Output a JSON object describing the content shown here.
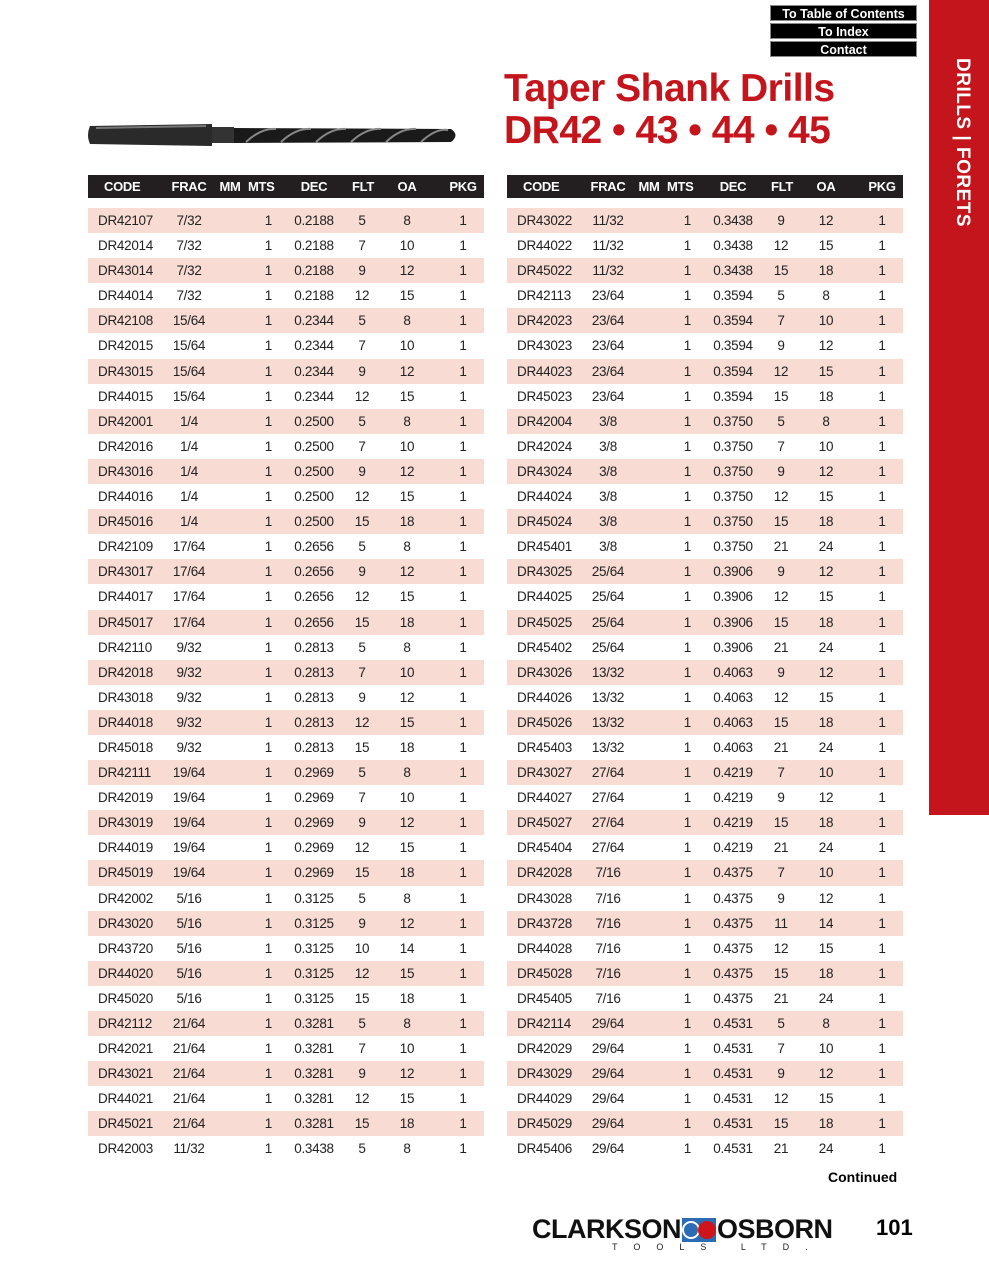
{
  "nav": {
    "toc": "To Table of Contents",
    "index": "To Index",
    "contact": "Contact"
  },
  "sidebar_label": "DRILLS  |  FORETS",
  "title_line1": "Taper Shank Drills",
  "title_line2": "DR42 • 43 • 44 • 45",
  "columns": [
    "CODE",
    "FRAC",
    "MM",
    "MTS",
    "DEC",
    "FLT",
    "OA",
    "PKG"
  ],
  "colors": {
    "accent": "#c4141c",
    "row_shade": "#f8dbd2",
    "header_bg": "#231f20"
  },
  "left_rows": [
    [
      "DR42107",
      "7/32",
      "",
      "1",
      "0.2188",
      "5",
      "8",
      "1"
    ],
    [
      "DR42014",
      "7/32",
      "",
      "1",
      "0.2188",
      "7",
      "10",
      "1"
    ],
    [
      "DR43014",
      "7/32",
      "",
      "1",
      "0.2188",
      "9",
      "12",
      "1"
    ],
    [
      "DR44014",
      "7/32",
      "",
      "1",
      "0.2188",
      "12",
      "15",
      "1"
    ],
    [
      "DR42108",
      "15/64",
      "",
      "1",
      "0.2344",
      "5",
      "8",
      "1"
    ],
    [
      "DR42015",
      "15/64",
      "",
      "1",
      "0.2344",
      "7",
      "10",
      "1"
    ],
    [
      "DR43015",
      "15/64",
      "",
      "1",
      "0.2344",
      "9",
      "12",
      "1"
    ],
    [
      "DR44015",
      "15/64",
      "",
      "1",
      "0.2344",
      "12",
      "15",
      "1"
    ],
    [
      "DR42001",
      "1/4",
      "",
      "1",
      "0.2500",
      "5",
      "8",
      "1"
    ],
    [
      "DR42016",
      "1/4",
      "",
      "1",
      "0.2500",
      "7",
      "10",
      "1"
    ],
    [
      "DR43016",
      "1/4",
      "",
      "1",
      "0.2500",
      "9",
      "12",
      "1"
    ],
    [
      "DR44016",
      "1/4",
      "",
      "1",
      "0.2500",
      "12",
      "15",
      "1"
    ],
    [
      "DR45016",
      "1/4",
      "",
      "1",
      "0.2500",
      "15",
      "18",
      "1"
    ],
    [
      "DR42109",
      "17/64",
      "",
      "1",
      "0.2656",
      "5",
      "8",
      "1"
    ],
    [
      "DR43017",
      "17/64",
      "",
      "1",
      "0.2656",
      "9",
      "12",
      "1"
    ],
    [
      "DR44017",
      "17/64",
      "",
      "1",
      "0.2656",
      "12",
      "15",
      "1"
    ],
    [
      "DR45017",
      "17/64",
      "",
      "1",
      "0.2656",
      "15",
      "18",
      "1"
    ],
    [
      "DR42110",
      "9/32",
      "",
      "1",
      "0.2813",
      "5",
      "8",
      "1"
    ],
    [
      "DR42018",
      "9/32",
      "",
      "1",
      "0.2813",
      "7",
      "10",
      "1"
    ],
    [
      "DR43018",
      "9/32",
      "",
      "1",
      "0.2813",
      "9",
      "12",
      "1"
    ],
    [
      "DR44018",
      "9/32",
      "",
      "1",
      "0.2813",
      "12",
      "15",
      "1"
    ],
    [
      "DR45018",
      "9/32",
      "",
      "1",
      "0.2813",
      "15",
      "18",
      "1"
    ],
    [
      "DR42111",
      "19/64",
      "",
      "1",
      "0.2969",
      "5",
      "8",
      "1"
    ],
    [
      "DR42019",
      "19/64",
      "",
      "1",
      "0.2969",
      "7",
      "10",
      "1"
    ],
    [
      "DR43019",
      "19/64",
      "",
      "1",
      "0.2969",
      "9",
      "12",
      "1"
    ],
    [
      "DR44019",
      "19/64",
      "",
      "1",
      "0.2969",
      "12",
      "15",
      "1"
    ],
    [
      "DR45019",
      "19/64",
      "",
      "1",
      "0.2969",
      "15",
      "18",
      "1"
    ],
    [
      "DR42002",
      "5/16",
      "",
      "1",
      "0.3125",
      "5",
      "8",
      "1"
    ],
    [
      "DR43020",
      "5/16",
      "",
      "1",
      "0.3125",
      "9",
      "12",
      "1"
    ],
    [
      "DR43720",
      "5/16",
      "",
      "1",
      "0.3125",
      "10",
      "14",
      "1"
    ],
    [
      "DR44020",
      "5/16",
      "",
      "1",
      "0.3125",
      "12",
      "15",
      "1"
    ],
    [
      "DR45020",
      "5/16",
      "",
      "1",
      "0.3125",
      "15",
      "18",
      "1"
    ],
    [
      "DR42112",
      "21/64",
      "",
      "1",
      "0.3281",
      "5",
      "8",
      "1"
    ],
    [
      "DR42021",
      "21/64",
      "",
      "1",
      "0.3281",
      "7",
      "10",
      "1"
    ],
    [
      "DR43021",
      "21/64",
      "",
      "1",
      "0.3281",
      "9",
      "12",
      "1"
    ],
    [
      "DR44021",
      "21/64",
      "",
      "1",
      "0.3281",
      "12",
      "15",
      "1"
    ],
    [
      "DR45021",
      "21/64",
      "",
      "1",
      "0.3281",
      "15",
      "18",
      "1"
    ],
    [
      "DR42003",
      "11/32",
      "",
      "1",
      "0.3438",
      "5",
      "8",
      "1"
    ]
  ],
  "right_rows": [
    [
      "DR43022",
      "11/32",
      "",
      "1",
      "0.3438",
      "9",
      "12",
      "1"
    ],
    [
      "DR44022",
      "11/32",
      "",
      "1",
      "0.3438",
      "12",
      "15",
      "1"
    ],
    [
      "DR45022",
      "11/32",
      "",
      "1",
      "0.3438",
      "15",
      "18",
      "1"
    ],
    [
      "DR42113",
      "23/64",
      "",
      "1",
      "0.3594",
      "5",
      "8",
      "1"
    ],
    [
      "DR42023",
      "23/64",
      "",
      "1",
      "0.3594",
      "7",
      "10",
      "1"
    ],
    [
      "DR43023",
      "23/64",
      "",
      "1",
      "0.3594",
      "9",
      "12",
      "1"
    ],
    [
      "DR44023",
      "23/64",
      "",
      "1",
      "0.3594",
      "12",
      "15",
      "1"
    ],
    [
      "DR45023",
      "23/64",
      "",
      "1",
      "0.3594",
      "15",
      "18",
      "1"
    ],
    [
      "DR42004",
      "3/8",
      "",
      "1",
      "0.3750",
      "5",
      "8",
      "1"
    ],
    [
      "DR42024",
      "3/8",
      "",
      "1",
      "0.3750",
      "7",
      "10",
      "1"
    ],
    [
      "DR43024",
      "3/8",
      "",
      "1",
      "0.3750",
      "9",
      "12",
      "1"
    ],
    [
      "DR44024",
      "3/8",
      "",
      "1",
      "0.3750",
      "12",
      "15",
      "1"
    ],
    [
      "DR45024",
      "3/8",
      "",
      "1",
      "0.3750",
      "15",
      "18",
      "1"
    ],
    [
      "DR45401",
      "3/8",
      "",
      "1",
      "0.3750",
      "21",
      "24",
      "1"
    ],
    [
      "DR43025",
      "25/64",
      "",
      "1",
      "0.3906",
      "9",
      "12",
      "1"
    ],
    [
      "DR44025",
      "25/64",
      "",
      "1",
      "0.3906",
      "12",
      "15",
      "1"
    ],
    [
      "DR45025",
      "25/64",
      "",
      "1",
      "0.3906",
      "15",
      "18",
      "1"
    ],
    [
      "DR45402",
      "25/64",
      "",
      "1",
      "0.3906",
      "21",
      "24",
      "1"
    ],
    [
      "DR43026",
      "13/32",
      "",
      "1",
      "0.4063",
      "9",
      "12",
      "1"
    ],
    [
      "DR44026",
      "13/32",
      "",
      "1",
      "0.4063",
      "12",
      "15",
      "1"
    ],
    [
      "DR45026",
      "13/32",
      "",
      "1",
      "0.4063",
      "15",
      "18",
      "1"
    ],
    [
      "DR45403",
      "13/32",
      "",
      "1",
      "0.4063",
      "21",
      "24",
      "1"
    ],
    [
      "DR43027",
      "27/64",
      "",
      "1",
      "0.4219",
      "7",
      "10",
      "1"
    ],
    [
      "DR44027",
      "27/64",
      "",
      "1",
      "0.4219",
      "9",
      "12",
      "1"
    ],
    [
      "DR45027",
      "27/64",
      "",
      "1",
      "0.4219",
      "15",
      "18",
      "1"
    ],
    [
      "DR45404",
      "27/64",
      "",
      "1",
      "0.4219",
      "21",
      "24",
      "1"
    ],
    [
      "DR42028",
      "7/16",
      "",
      "1",
      "0.4375",
      "7",
      "10",
      "1"
    ],
    [
      "DR43028",
      "7/16",
      "",
      "1",
      "0.4375",
      "9",
      "12",
      "1"
    ],
    [
      "DR43728",
      "7/16",
      "",
      "1",
      "0.4375",
      "11",
      "14",
      "1"
    ],
    [
      "DR44028",
      "7/16",
      "",
      "1",
      "0.4375",
      "12",
      "15",
      "1"
    ],
    [
      "DR45028",
      "7/16",
      "",
      "1",
      "0.4375",
      "15",
      "18",
      "1"
    ],
    [
      "DR45405",
      "7/16",
      "",
      "1",
      "0.4375",
      "21",
      "24",
      "1"
    ],
    [
      "DR42114",
      "29/64",
      "",
      "1",
      "0.4531",
      "5",
      "8",
      "1"
    ],
    [
      "DR42029",
      "29/64",
      "",
      "1",
      "0.4531",
      "7",
      "10",
      "1"
    ],
    [
      "DR43029",
      "29/64",
      "",
      "1",
      "0.4531",
      "9",
      "12",
      "1"
    ],
    [
      "DR44029",
      "29/64",
      "",
      "1",
      "0.4531",
      "12",
      "15",
      "1"
    ],
    [
      "DR45029",
      "29/64",
      "",
      "1",
      "0.4531",
      "15",
      "18",
      "1"
    ],
    [
      "DR45406",
      "29/64",
      "",
      "1",
      "0.4531",
      "21",
      "24",
      "1"
    ]
  ],
  "continued": "Continued",
  "logo": {
    "left": "CLARKSON",
    "right": "OSBORN",
    "sub": "TOOLS LTD."
  },
  "page_number": "101"
}
